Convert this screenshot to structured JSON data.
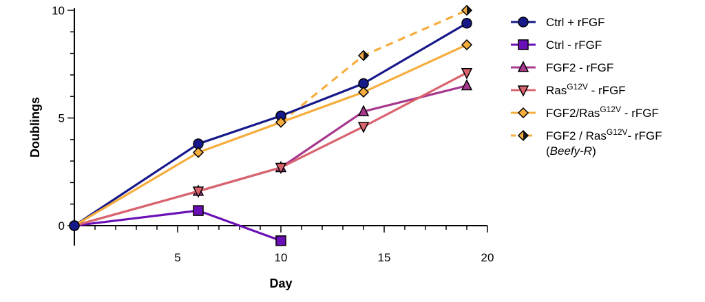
{
  "chart_data": {
    "type": "line",
    "xlabel": "Day",
    "ylabel": "Doublings",
    "xlim": [
      0,
      20
    ],
    "ylim": [
      -1,
      10
    ],
    "xticks": [
      5,
      10,
      15,
      20
    ],
    "yticks": [
      0,
      5,
      10
    ],
    "grid": false,
    "legend_position": "right",
    "series": [
      {
        "name": "Ctrl + rFGF",
        "color": "#17198a",
        "marker": "circle",
        "dashed": false,
        "x": [
          0,
          6,
          10,
          14,
          19
        ],
        "y": [
          0,
          3.8,
          5.1,
          6.6,
          9.4
        ]
      },
      {
        "name": "Ctrl - rFGF",
        "color": "#6a0fb5",
        "marker": "square",
        "dashed": false,
        "x": [
          0,
          6,
          10
        ],
        "y": [
          0,
          0.7,
          -0.7
        ]
      },
      {
        "name": "FGF2 - rFGF",
        "color": "#a8388e",
        "marker": "triangle-up",
        "dashed": false,
        "x": [
          0,
          6,
          10,
          14,
          19
        ],
        "y": [
          0,
          1.6,
          2.7,
          5.3,
          6.5
        ]
      },
      {
        "name_main": "Ras",
        "name_sup": "G12V",
        "name_rest": " - rFGF",
        "color": "#d9646e",
        "marker": "triangle-down",
        "dashed": false,
        "x": [
          0,
          6,
          10,
          14,
          19
        ],
        "y": [
          0,
          1.6,
          2.7,
          4.6,
          7.1
        ]
      },
      {
        "name_main": "FGF2/Ras",
        "name_sup": "G12V",
        "name_rest": " - rFGF",
        "color": "#f6ad3e",
        "marker": "diamond",
        "dashed": false,
        "x": [
          0,
          6,
          10,
          14,
          19
        ],
        "y": [
          0,
          3.4,
          4.8,
          6.2,
          8.4
        ]
      },
      {
        "name_main": "FGF2 / Ras",
        "name_sup": "G12V",
        "name_rest": "- rFGF",
        "name_line2_open": "(",
        "name_line2_italic": "Beefy-R",
        "name_line2_close": ")",
        "color": "#f6ad3e",
        "marker": "diamond-half",
        "dashed": true,
        "x": [
          10,
          14,
          19
        ],
        "y": [
          4.8,
          7.9,
          10.0
        ]
      }
    ]
  }
}
